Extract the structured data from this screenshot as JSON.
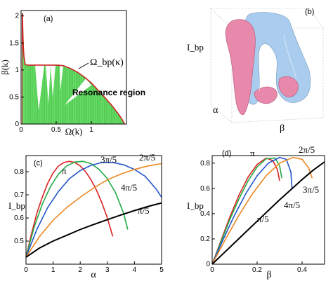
{
  "chart_data": [
    {
      "panel": "(a)",
      "type": "area",
      "xlabel": "Ω(k)",
      "ylabel": "β(k)",
      "xlim": [
        0,
        1.5
      ],
      "ylim": [
        0,
        2.1
      ],
      "x_ticks": [
        0,
        0.5,
        1
      ],
      "y_ticks": [
        0,
        0.5,
        1,
        1.5,
        2
      ],
      "curve_label": "Ω_bp(κ)",
      "region_label": "Resonance region",
      "boundary_x": [
        0.05,
        0.1,
        0.2,
        0.3,
        0.4,
        0.5,
        0.6,
        0.7,
        0.8,
        0.9,
        1.0,
        1.1,
        1.2,
        1.3,
        1.4,
        1.45,
        1.47
      ],
      "boundary_y": [
        1.1,
        1.09,
        1.09,
        1.09,
        1.09,
        1.09,
        1.08,
        1.03,
        0.96,
        0.87,
        0.76,
        0.62,
        0.48,
        0.33,
        0.16,
        0.06,
        0
      ],
      "colors": {
        "fill": "#66dd66",
        "boundary": "#cc2222"
      }
    },
    {
      "panel": "(b)",
      "type": "surface-3d",
      "xlabel": "α",
      "ylabel": "β",
      "zlabel": "I_bp",
      "colors": {
        "front": "#e888aa",
        "back": "#aaccee"
      }
    },
    {
      "panel": "(c)",
      "type": "line",
      "xlabel": "α",
      "ylabel": "I_bp",
      "xlim": [
        0,
        5
      ],
      "ylim": [
        0.4,
        0.87
      ],
      "x_ticks": [
        0,
        1,
        2,
        3,
        4,
        5
      ],
      "y_ticks": [
        0.5,
        0.6,
        0.7,
        0.8
      ],
      "series": [
        {
          "name": "π",
          "color": "#dd2222",
          "x": [
            0,
            0.2,
            0.4,
            0.6,
            0.8,
            1.0,
            1.2,
            1.4,
            1.6,
            1.8,
            2.0,
            2.2,
            2.4,
            2.6,
            2.8,
            3.0,
            3.2
          ],
          "y": [
            0.43,
            0.53,
            0.62,
            0.69,
            0.75,
            0.795,
            0.825,
            0.84,
            0.845,
            0.84,
            0.825,
            0.8,
            0.765,
            0.72,
            0.665,
            0.6,
            0.52
          ]
        },
        {
          "name": "4π/5",
          "color": "#22aa44",
          "x": [
            0,
            0.3,
            0.6,
            0.9,
            1.2,
            1.5,
            1.8,
            2.1,
            2.4,
            2.7,
            3.0,
            3.3,
            3.6,
            3.75
          ],
          "y": [
            0.43,
            0.56,
            0.66,
            0.735,
            0.79,
            0.825,
            0.842,
            0.845,
            0.835,
            0.81,
            0.77,
            0.71,
            0.62,
            0.55
          ]
        },
        {
          "name": "3π/5",
          "color": "#2255cc",
          "x": [
            0,
            0.4,
            0.8,
            1.2,
            1.6,
            2.0,
            2.4,
            2.8,
            3.2,
            3.6,
            4.0,
            4.4,
            4.8,
            5.0
          ],
          "y": [
            0.43,
            0.55,
            0.645,
            0.715,
            0.77,
            0.805,
            0.828,
            0.84,
            0.84,
            0.83,
            0.81,
            0.78,
            0.725,
            0.69
          ]
        },
        {
          "name": "2π/5",
          "color": "#ee8822",
          "x": [
            0,
            0.5,
            1.0,
            1.5,
            2.0,
            2.5,
            3.0,
            3.5,
            4.0,
            4.5,
            5.0
          ],
          "y": [
            0.43,
            0.52,
            0.59,
            0.645,
            0.69,
            0.73,
            0.765,
            0.79,
            0.81,
            0.825,
            0.835
          ]
        },
        {
          "name": "π/5",
          "color": "#000000",
          "x": [
            0,
            0.5,
            1.0,
            1.5,
            2.0,
            2.5,
            3.0,
            3.5,
            4.0,
            4.5,
            5.0
          ],
          "y": [
            0.43,
            0.47,
            0.5,
            0.525,
            0.55,
            0.572,
            0.593,
            0.613,
            0.632,
            0.65,
            0.665
          ]
        }
      ]
    },
    {
      "panel": "(d)",
      "type": "line",
      "xlabel": "β",
      "ylabel": "I_bp",
      "xlim": [
        0,
        0.5
      ],
      "ylim": [
        0,
        0.86
      ],
      "x_ticks": [
        0,
        0.2,
        0.4
      ],
      "y_ticks": [
        0,
        0.2,
        0.4,
        0.6,
        0.8
      ],
      "series": [
        {
          "name": "π",
          "color": "#dd2222",
          "x": [
            0,
            0.04,
            0.08,
            0.12,
            0.16,
            0.2,
            0.24,
            0.27,
            0.29,
            0.3
          ],
          "y": [
            0,
            0.19,
            0.38,
            0.55,
            0.69,
            0.79,
            0.84,
            0.82,
            0.75,
            0.66
          ]
        },
        {
          "name": "4π/5",
          "color": "#22aa44",
          "x": [
            0,
            0.04,
            0.08,
            0.12,
            0.16,
            0.2,
            0.24,
            0.28,
            0.3,
            0.31
          ],
          "y": [
            0,
            0.18,
            0.36,
            0.52,
            0.66,
            0.77,
            0.835,
            0.84,
            0.78,
            0.68
          ]
        },
        {
          "name": "3π/5",
          "color": "#2255cc",
          "x": [
            0,
            0.05,
            0.1,
            0.15,
            0.2,
            0.25,
            0.3,
            0.33,
            0.35,
            0.355
          ],
          "y": [
            0,
            0.2,
            0.39,
            0.56,
            0.7,
            0.8,
            0.845,
            0.83,
            0.73,
            0.6
          ]
        },
        {
          "name": "2π/5",
          "color": "#ee8822",
          "x": [
            0,
            0.06,
            0.12,
            0.18,
            0.24,
            0.3,
            0.36,
            0.4,
            0.43,
            0.445
          ],
          "y": [
            0,
            0.2,
            0.39,
            0.56,
            0.7,
            0.8,
            0.845,
            0.83,
            0.76,
            0.68
          ]
        },
        {
          "name": "π/5",
          "color": "#000000",
          "x": [
            0,
            0.05,
            0.1,
            0.15,
            0.2,
            0.25,
            0.3,
            0.35,
            0.4,
            0.45,
            0.5
          ],
          "y": [
            0,
            0.085,
            0.17,
            0.255,
            0.34,
            0.425,
            0.51,
            0.59,
            0.67,
            0.745,
            0.81
          ]
        }
      ]
    }
  ]
}
